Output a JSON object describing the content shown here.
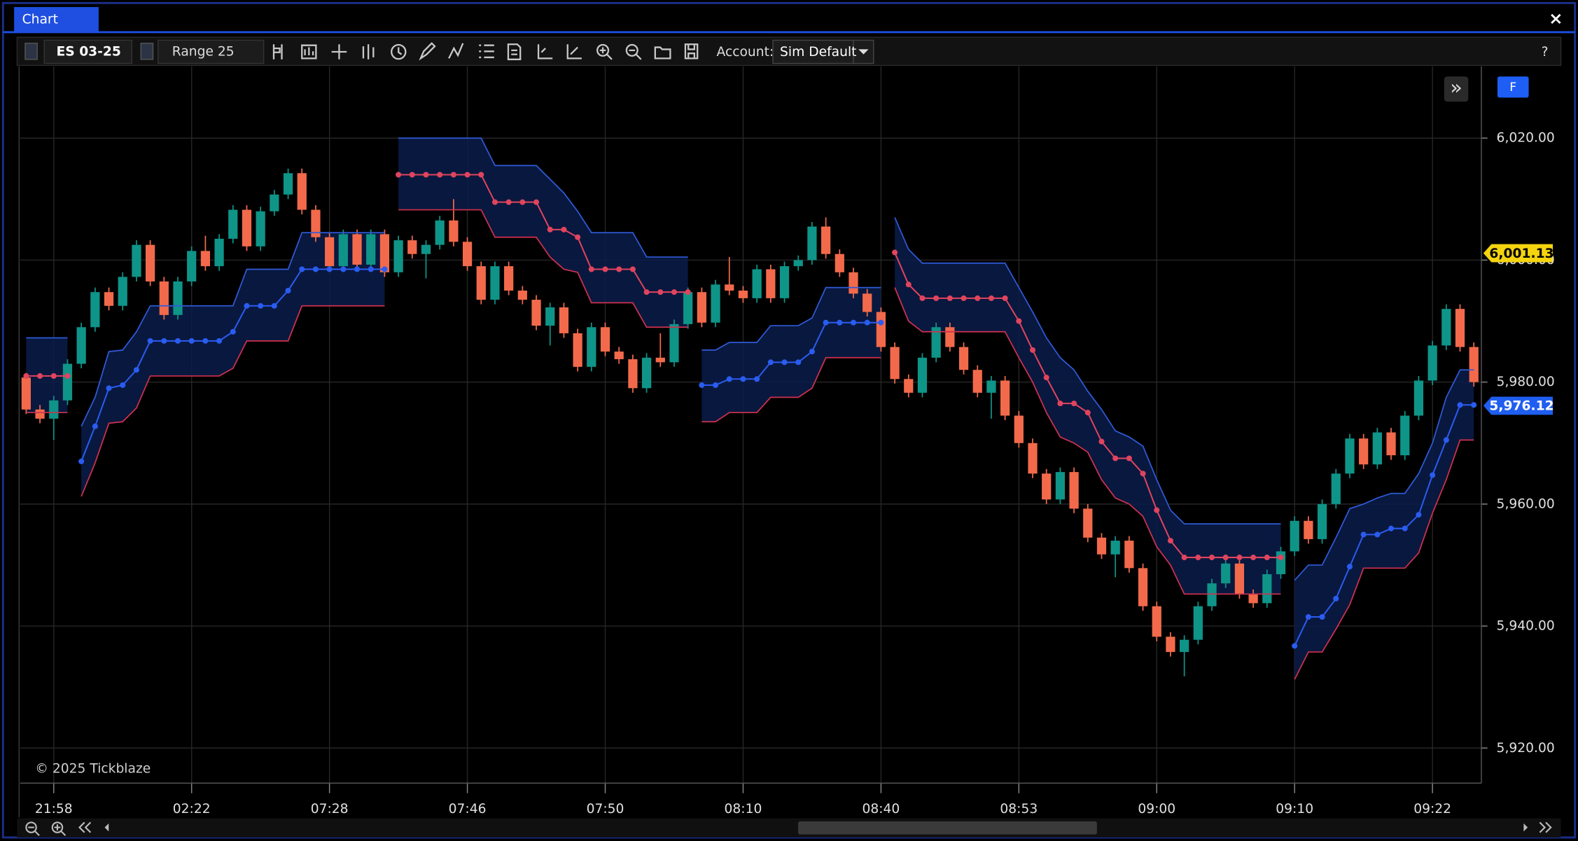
{
  "window": {
    "title": "Chart",
    "close": "×"
  },
  "toolbar": {
    "symbol": "ES 03-25",
    "bar_type": "Range 25",
    "account_label": "Account:",
    "account": "Sim Default",
    "help": "?"
  },
  "panel": {
    "expand": "»",
    "flag": "F"
  },
  "watermark": "© 2025 Tickblaze",
  "chart_data": {
    "type": "candlestick",
    "categories": [
      null,
      null,
      "21:58",
      null,
      null,
      null,
      null,
      null,
      null,
      null,
      null,
      null,
      "02:22",
      null,
      null,
      null,
      null,
      null,
      null,
      null,
      null,
      null,
      "07:28",
      null,
      null,
      null,
      null,
      null,
      null,
      null,
      null,
      null,
      "07:46",
      null,
      null,
      null,
      null,
      null,
      null,
      null,
      null,
      null,
      "07:50",
      null,
      null,
      null,
      null,
      null,
      null,
      null,
      null,
      null,
      "08:10",
      null,
      null,
      null,
      null,
      null,
      null,
      null,
      null,
      null,
      "08:40",
      null,
      null,
      null,
      null,
      null,
      null,
      null,
      null,
      null,
      "08:53",
      null,
      null,
      null,
      null,
      null,
      null,
      null,
      null,
      null,
      "09:00",
      null,
      null,
      null,
      null,
      null,
      null,
      null,
      null,
      null,
      "09:10",
      null,
      null,
      null,
      null,
      null,
      null,
      null,
      null,
      null,
      "09:22",
      null,
      null,
      null
    ],
    "open": [
      5980.75,
      5975.5,
      5974,
      5977,
      5983,
      5989,
      5994.75,
      5992.5,
      5997.25,
      6002.5,
      5996.5,
      5991,
      5996.5,
      6001.5,
      5999,
      6003.5,
      6008.25,
      6002.25,
      6008,
      6010.75,
      6014.25,
      6008.25,
      6003.75,
      5999,
      6004.25,
      5999.25,
      6004.25,
      5998,
      6003.25,
      6001,
      6002.5,
      6006.5,
      6003,
      5999,
      5993.5,
      5999,
      5995,
      5993.5,
      5989.25,
      5992.25,
      5988,
      5982.5,
      5989,
      5985,
      5983.75,
      5979,
      5984,
      5983.25,
      5989.5,
      5994.75,
      5989.75,
      5996,
      5995,
      5993.75,
      5998.5,
      5993.75,
      5999,
      6000,
      6005.5,
      6001,
      5998,
      5994.5,
      5991.5,
      5985.75,
      5980.5,
      5978.25,
      5984,
      5989,
      5985.75,
      5982,
      5978.25,
      5980.25,
      5974.5,
      5970,
      5965,
      5960.75,
      5965.25,
      5959.25,
      5954.5,
      5951.75,
      5954,
      5949.5,
      5943.25,
      5938.25,
      5935.75,
      5937.75,
      5943.25,
      5947,
      5950.25,
      5945.25,
      5943.75,
      5948.5,
      5952.25,
      5957.25,
      5954.25,
      5960,
      5965,
      5970.75,
      5966.5,
      5971.75,
      5968,
      5974.5,
      5980.25,
      5986,
      5992,
      5985.75
    ],
    "high": [
      5981.5,
      5976.25,
      5977.75,
      5983.75,
      5989.75,
      5995.5,
      5995.5,
      5998,
      6003.25,
      6003.25,
      5997.25,
      5997.25,
      6002.25,
      6004,
      6004.25,
      6009,
      6009,
      6008.75,
      6011.5,
      6015,
      6015,
      6009,
      6004.5,
      6005,
      6005,
      6005,
      6005,
      6004,
      6004,
      6003.25,
      6007.25,
      6010,
      6003.75,
      5999.75,
      5999.75,
      5999.75,
      5995.75,
      5994.25,
      5993,
      5993,
      5988.75,
      5989.75,
      5989.75,
      5985.75,
      5984.5,
      5984.75,
      5988,
      5990.25,
      5995.5,
      5995.5,
      5996.75,
      6000.5,
      5995.75,
      5999.25,
      5999.25,
      5999.75,
      6000.75,
      6006.25,
      6007,
      6001.75,
      5998.75,
      5995.25,
      5992.25,
      5986.5,
      5981.25,
      5984.75,
      5989.75,
      5989.75,
      5986.5,
      5982.75,
      5981,
      5981,
      5975.25,
      5970.75,
      5965.75,
      5966,
      5966,
      5960,
      5955.25,
      5954.75,
      5954.75,
      5950.25,
      5944,
      5939,
      5938.5,
      5944,
      5947.75,
      5951,
      5951,
      5946,
      5949.25,
      5953,
      5958,
      5958,
      5960.75,
      5965.75,
      5971.5,
      5971.5,
      5972.5,
      5972.5,
      5975.25,
      5981,
      5986.75,
      5992.75,
      5992.75,
      5986.5
    ],
    "low": [
      5974.75,
      5973.25,
      5970.5,
      5976.25,
      5982.25,
      5988.25,
      5991.75,
      5991.75,
      5996.5,
      5995.75,
      5990.25,
      5990.25,
      5995.75,
      5998.25,
      5998.25,
      6002.75,
      6001.5,
      6001.5,
      6007.25,
      6010,
      6007.5,
      6003,
      5998.25,
      5998.25,
      5998.5,
      5998.5,
      5997.25,
      5997.25,
      6000.25,
      5997,
      6001.75,
      6002.25,
      5998.25,
      5992.75,
      5992.75,
      5994.25,
      5992.75,
      5988.5,
      5986,
      5987.25,
      5981.75,
      5981.75,
      5984.25,
      5983,
      5978.25,
      5978.25,
      5982.5,
      5982.5,
      5988.75,
      5989,
      5989,
      5994.25,
      5993,
      5993,
      5993,
      5993,
      5998.25,
      5999.25,
      6000.25,
      5997.25,
      5993.75,
      5990.75,
      5985,
      5979.75,
      5977.5,
      5977.5,
      5983.25,
      5985,
      5981.25,
      5977.5,
      5974,
      5973.75,
      5969.25,
      5964.25,
      5960,
      5960,
      5958.5,
      5953.75,
      5951,
      5948,
      5948.75,
      5942.5,
      5937.5,
      5935,
      5931.75,
      5937,
      5942.5,
      5946.25,
      5944.5,
      5943,
      5943,
      5947.75,
      5951.5,
      5953.5,
      5953.5,
      5959.25,
      5964.25,
      5965.75,
      5965.75,
      5967.25,
      5967.25,
      5973.75,
      5979.5,
      5985.25,
      5985,
      5979.25
    ],
    "close": [
      5975.5,
      5974,
      5977,
      5983,
      5989,
      5994.75,
      5992.5,
      5997.25,
      6002.5,
      5996.5,
      5991,
      5996.5,
      6001.5,
      5999,
      6003.5,
      6008.25,
      6002.25,
      6008,
      6010.75,
      6014.25,
      6008.25,
      6003.75,
      5999,
      6004.25,
      5999.25,
      6004.25,
      5998,
      6003.25,
      6001,
      6002.5,
      6006.5,
      6003,
      5999,
      5993.5,
      5999,
      5995,
      5993.5,
      5989.25,
      5992.25,
      5988,
      5982.5,
      5989,
      5985,
      5983.75,
      5979,
      5984,
      5983.25,
      5989.5,
      5994.75,
      5989.75,
      5996,
      5995,
      5993.75,
      5998.5,
      5993.75,
      5999,
      6000,
      6005.5,
      6001,
      5998,
      5994.5,
      5991.5,
      5985.75,
      5980.5,
      5978.25,
      5984,
      5989,
      5985.75,
      5982,
      5978.25,
      5980.25,
      5974.5,
      5970,
      5965,
      5960.75,
      5965.25,
      5959.25,
      5954.5,
      5951.75,
      5954,
      5949.5,
      5943.25,
      5938.25,
      5935.75,
      5937.75,
      5943.25,
      5947,
      5950.25,
      5945.25,
      5943.75,
      5948.5,
      5952.25,
      5957.25,
      5954.25,
      5960,
      5965,
      5970.75,
      5966.5,
      5971.75,
      5968,
      5974.5,
      5980.25,
      5986,
      5992,
      5985.75,
      5980
    ],
    "up_color": "#0f9488",
    "down_color": "#f26a4b",
    "band_fill": "#0b1c4a",
    "upper_band": {
      "color": "#2f5bd8",
      "values": [
        5987.25,
        5987.25,
        5987.25,
        5987.25,
        5972.75,
        5977.5,
        5985,
        5985.25,
        5988.25,
        5992.5,
        5992.5,
        5992.5,
        5992.5,
        5992.5,
        5992.5,
        5992.5,
        5998.5,
        5998.5,
        5998.5,
        5998.5,
        6004.5,
        6004.5,
        6004.5,
        6004.5,
        6004.5,
        6004.5,
        6004.5,
        6020,
        6020,
        6020,
        6020,
        6020,
        6020,
        6020,
        6015.5,
        6015.5,
        6015.5,
        6015.5,
        6013.25,
        6011,
        6008,
        6004.5,
        6004.5,
        6004.5,
        6004.5,
        6000.5,
        6000.5,
        6000.5,
        6000.5,
        5985.25,
        5985.25,
        5986.5,
        5986.5,
        5986.5,
        5989.25,
        5989.25,
        5989.25,
        5990.5,
        5995.5,
        5995.5,
        5995.5,
        5995.5,
        5995.5,
        6007,
        6001.75,
        5999.5,
        5999.5,
        5999.5,
        5999.5,
        5999.5,
        5999.5,
        5999.5,
        5995.5,
        5991.5,
        5987.25,
        5984,
        5982,
        5978.5,
        5975.5,
        5972,
        5971,
        5969.5,
        5964,
        5959,
        5956.75,
        5956.75,
        5956.75,
        5956.75,
        5956.75,
        5956.75,
        5956.75,
        5956.75,
        5947.5,
        5950,
        5950,
        5954.5,
        5959.25,
        5960,
        5961,
        5961.75,
        5961.75,
        5965,
        5970,
        5977.5,
        5982,
        5982
      ]
    },
    "lower_band": {
      "color": "#d0314f",
      "values": [
        5975,
        5975,
        5975,
        5975,
        5961.25,
        5966.75,
        5973.25,
        5973.5,
        5975.75,
        5981,
        5981,
        5981,
        5981,
        5981,
        5981,
        5982.25,
        5986.75,
        5986.75,
        5986.75,
        5986.75,
        5992.5,
        5992.5,
        5992.5,
        5992.5,
        5992.5,
        5992.5,
        5992.5,
        6008.25,
        6008.25,
        6008.25,
        6008.25,
        6008.25,
        6008.25,
        6008.25,
        6003.75,
        6003.75,
        6003.75,
        6003.75,
        6000.5,
        5998.5,
        5998,
        5993,
        5993,
        5993,
        5993,
        5989,
        5989,
        5989,
        5989,
        5973.5,
        5973.5,
        5975,
        5975,
        5975,
        5977.5,
        5977.5,
        5977.5,
        5979,
        5984,
        5984,
        5984,
        5984,
        5984,
        5995.5,
        5990,
        5988.25,
        5988.25,
        5988.25,
        5988.25,
        5988.25,
        5988.25,
        5988.25,
        5984,
        5980,
        5975,
        5971,
        5970,
        5968.5,
        5964,
        5961,
        5960,
        5958,
        5953,
        5950,
        5945.25,
        5945.25,
        5945.25,
        5945.25,
        5945.25,
        5945.25,
        5945.25,
        5945.25,
        5931.25,
        5935.75,
        5935.75,
        5939.5,
        5943.5,
        5949.5,
        5949.5,
        5949.5,
        5949.5,
        5952,
        5958.5,
        5964,
        5970.5,
        5970.5
      ]
    },
    "mid_up": {
      "color": "#2a5cf0",
      "values": [
        null,
        null,
        null,
        null,
        5967,
        5972.75,
        5979,
        5979.5,
        5982,
        5986.75,
        5986.75,
        5986.75,
        5986.75,
        5986.75,
        5986.75,
        5988.25,
        5992.5,
        5992.5,
        5992.5,
        5995,
        5998.5,
        5998.5,
        5998.5,
        5998.5,
        5998.5,
        5998.5,
        5998.5,
        null,
        null,
        null,
        null,
        null,
        null,
        null,
        null,
        null,
        null,
        null,
        null,
        null,
        null,
        null,
        null,
        null,
        null,
        null,
        null,
        null,
        null,
        5979.5,
        5979.5,
        5980.5,
        5980.5,
        5980.5,
        5983.25,
        5983.25,
        5983.25,
        5985,
        5989.75,
        5989.75,
        5989.75,
        5989.75,
        5989.75,
        null,
        null,
        null,
        null,
        null,
        null,
        null,
        null,
        null,
        null,
        null,
        null,
        null,
        null,
        null,
        null,
        null,
        null,
        null,
        null,
        null,
        null,
        null,
        null,
        null,
        null,
        null,
        null,
        null,
        5936.75,
        5941.5,
        5941.5,
        5944.5,
        5949.75,
        5955,
        5955,
        5956,
        5956,
        5958.25,
        5964.75,
        5970.5,
        5976.25,
        5976.25
      ]
    },
    "mid_down": {
      "color": "#e0445e",
      "values": [
        5981,
        5981,
        5981,
        5981,
        null,
        null,
        null,
        null,
        null,
        null,
        null,
        null,
        null,
        null,
        null,
        null,
        null,
        null,
        null,
        null,
        null,
        null,
        null,
        null,
        null,
        null,
        null,
        6014,
        6014,
        6014,
        6014,
        6014,
        6014,
        6014,
        6009.5,
        6009.5,
        6009.5,
        6009.5,
        6005,
        6005,
        6003.75,
        5998.5,
        5998.5,
        5998.5,
        5998.5,
        5994.75,
        5994.75,
        5994.75,
        5994.75,
        null,
        null,
        null,
        null,
        null,
        null,
        null,
        null,
        null,
        null,
        null,
        null,
        null,
        null,
        6001.25,
        5996,
        5993.75,
        5993.75,
        5993.75,
        5993.75,
        5993.75,
        5993.75,
        5993.75,
        5990,
        5985.25,
        5980.75,
        5976.5,
        5976.5,
        5975,
        5970.25,
        5967.5,
        5967.5,
        5965,
        5959,
        5954,
        5951.25,
        5951.25,
        5951.25,
        5951.25,
        5951.25,
        5951.25,
        5951.25,
        5951.25,
        null,
        null,
        null,
        null,
        null,
        null,
        null,
        null,
        null,
        null,
        null,
        null,
        null,
        null
      ]
    },
    "ylim": [
      5914.25,
      6031.75
    ],
    "yticks": [
      {
        "value": 5920,
        "label": "5,920.00"
      },
      {
        "value": 5940,
        "label": "5,940.00"
      },
      {
        "value": 5960,
        "label": "5,960.00"
      },
      {
        "value": 5980,
        "label": "5,980.00"
      },
      {
        "value": 6000,
        "label": "6,000.00"
      },
      {
        "value": 6020,
        "label": "6,020.00"
      }
    ],
    "grid": true,
    "price_markers": [
      {
        "value": 6001.13,
        "label": "6,001.13",
        "color": "#f5d40f"
      },
      {
        "value": 5976.12,
        "label": "5,976.12",
        "color": "#1f5ef0"
      }
    ]
  }
}
